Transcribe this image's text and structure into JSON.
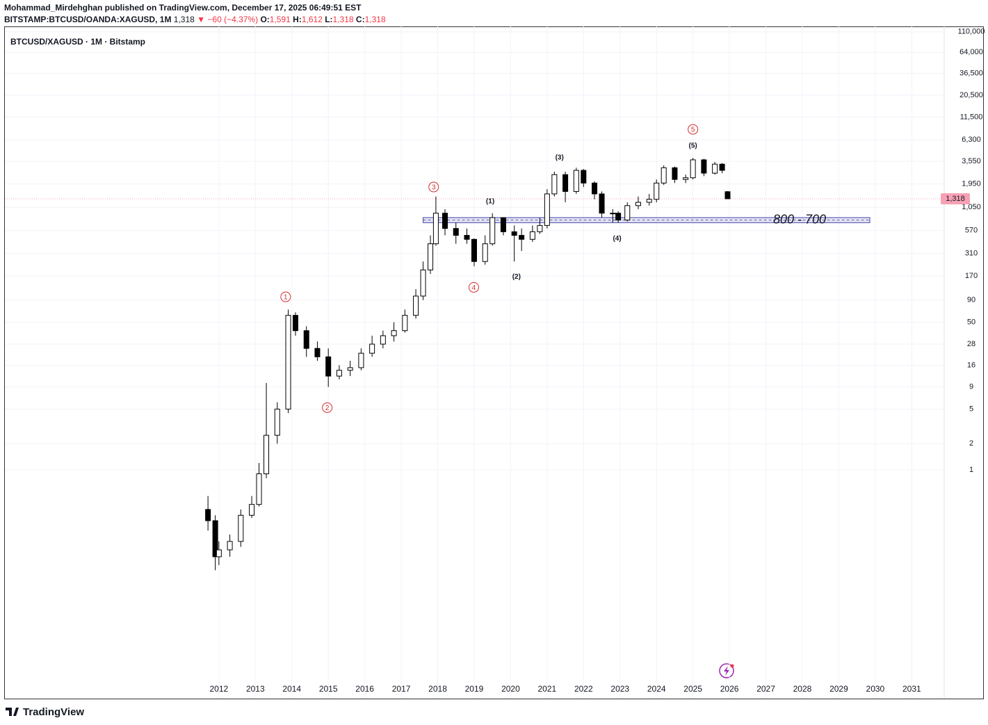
{
  "header": {
    "publisher": "Mohammad_Mirdehghan published on TradingView.com, December 17, 2025 06:49:51 EST",
    "symbol": "BITSTAMP:BTCUSD/OANDA:XAGUSD, 1M",
    "last": "1,318",
    "change": "▼ −60 (−4.37%)",
    "o_key": "O:",
    "o_val": "1,591",
    "h_key": "H:",
    "h_val": "1,612",
    "l_key": "L:",
    "l_val": "1,318",
    "c_key": "C:",
    "c_val": "1,318"
  },
  "footer": {
    "brand": "TradingView"
  },
  "chart_data": {
    "type": "candlestick",
    "title": "BTCUSD/XAGUSD · 1M · Bitstamp",
    "log_scale": true,
    "grid": true,
    "up_color": "#ffffff",
    "down_color": "#000000",
    "edge_color": "#000000",
    "x": [
      2011.7,
      2011.9,
      2012.0,
      2012.3,
      2012.6,
      2012.9,
      2013.1,
      2013.3,
      2013.6,
      2013.9,
      2014.1,
      2014.4,
      2014.7,
      2015.0,
      2015.3,
      2015.6,
      2015.9,
      2016.2,
      2016.5,
      2016.8,
      2017.1,
      2017.4,
      2017.6,
      2017.8,
      2017.95,
      2018.2,
      2018.5,
      2018.8,
      2019.0,
      2019.3,
      2019.5,
      2019.8,
      2020.1,
      2020.3,
      2020.6,
      2020.8,
      2021.0,
      2021.2,
      2021.5,
      2021.8,
      2022.0,
      2022.3,
      2022.5,
      2022.8,
      2022.95,
      2023.2,
      2023.5,
      2023.8,
      2024.0,
      2024.2,
      2024.5,
      2024.8,
      2025.0,
      2025.3,
      2025.6,
      2025.8,
      2025.95
    ],
    "open": [
      0.35,
      0.26,
      0.1,
      0.12,
      0.15,
      0.3,
      0.4,
      0.9,
      2.5,
      5,
      60,
      40,
      25,
      20,
      12,
      14,
      15,
      22,
      28,
      35,
      40,
      60,
      100,
      200,
      400,
      900,
      600,
      500,
      450,
      250,
      400,
      800,
      550,
      500,
      450,
      550,
      650,
      1500,
      2500,
      1600,
      2800,
      2000,
      1500,
      900,
      900,
      750,
      1100,
      1200,
      1300,
      2000,
      3000,
      2200,
      2300,
      3700,
      2600,
      3300,
      1591
    ],
    "high": [
      0.5,
      0.3,
      0.15,
      0.18,
      0.35,
      0.5,
      1.2,
      10,
      6,
      70,
      65,
      45,
      30,
      25,
      16,
      18,
      25,
      35,
      40,
      50,
      70,
      120,
      250,
      500,
      1400,
      1000,
      700,
      600,
      460,
      500,
      900,
      800,
      650,
      600,
      650,
      800,
      1700,
      2700,
      2700,
      3000,
      2900,
      2100,
      1600,
      1000,
      950,
      1200,
      1400,
      1500,
      2200,
      3200,
      3100,
      2500,
      3900,
      3800,
      3500,
      3400,
      1612
    ],
    "low": [
      0.2,
      0.07,
      0.08,
      0.1,
      0.13,
      0.28,
      0.38,
      0.8,
      2,
      4.5,
      35,
      20,
      18,
      9,
      11,
      12,
      14,
      20,
      25,
      30,
      38,
      55,
      90,
      180,
      380,
      500,
      400,
      400,
      220,
      230,
      380,
      500,
      250,
      330,
      420,
      520,
      600,
      1400,
      1200,
      1500,
      1800,
      1300,
      800,
      700,
      700,
      720,
      1000,
      1100,
      1200,
      1900,
      2000,
      2000,
      2200,
      2400,
      2500,
      2600,
      1318
    ],
    "close": [
      0.26,
      0.1,
      0.12,
      0.15,
      0.3,
      0.4,
      0.9,
      2.5,
      5,
      60,
      40,
      25,
      20,
      12,
      14,
      15,
      22,
      28,
      35,
      40,
      60,
      100,
      200,
      400,
      900,
      600,
      500,
      450,
      250,
      400,
      800,
      550,
      500,
      450,
      550,
      650,
      1500,
      2500,
      1600,
      2800,
      2000,
      1500,
      900,
      900,
      750,
      1100,
      1200,
      1300,
      2000,
      3000,
      2200,
      2300,
      3700,
      2600,
      3300,
      2800,
      1318
    ],
    "xlim": [
      2006.13,
      2031.89
    ],
    "xticks": [
      2012,
      2013,
      2014,
      2015,
      2016,
      2017,
      2018,
      2019,
      2020,
      2021,
      2022,
      2023,
      2024,
      2025,
      2026,
      2027,
      2028,
      2029,
      2030,
      2031
    ],
    "ylim": [
      0.00233,
      127000
    ],
    "yticks": [
      {
        "value": 110000,
        "label": "110,000"
      },
      {
        "value": 64000,
        "label": "64,000"
      },
      {
        "value": 36500,
        "label": "36,500"
      },
      {
        "value": 20500,
        "label": "20,500"
      },
      {
        "value": 11500,
        "label": "11,500"
      },
      {
        "value": 6300,
        "label": "6,300"
      },
      {
        "value": 3550,
        "label": "3,550"
      },
      {
        "value": 1950,
        "label": "1,950"
      },
      {
        "value": 1050,
        "label": "1,050"
      },
      570,
      310,
      170,
      90,
      50,
      28,
      16,
      9,
      5,
      2,
      1
    ],
    "last_price": {
      "value": 1318,
      "label": "1,318",
      "color": "#f7a1b5"
    },
    "zone": {
      "label": "800 - 700",
      "low": 700,
      "high": 800,
      "x_start": 2017.6,
      "x_end": 2029.85,
      "color": "#3f3fa8"
    },
    "annotations": [
      {
        "text": "1",
        "x": 2013.83,
        "y": 98,
        "circled": true
      },
      {
        "text": "2",
        "x": 2014.97,
        "y": 5.2,
        "circled": true
      },
      {
        "text": "3",
        "x": 2017.89,
        "y": 1800,
        "circled": true
      },
      {
        "text": "4",
        "x": 2018.99,
        "y": 126,
        "circled": true
      },
      {
        "text": "5",
        "x": 2025.0,
        "y": 8300,
        "circled": true
      },
      {
        "text": "(1)",
        "x": 2019.44,
        "y": 1230,
        "circled": false
      },
      {
        "text": "(2)",
        "x": 2020.16,
        "y": 167,
        "circled": false
      },
      {
        "text": "(3)",
        "x": 2021.34,
        "y": 3900,
        "circled": false
      },
      {
        "text": "(4)",
        "x": 2022.92,
        "y": 460,
        "circled": false
      },
      {
        "text": "(5)",
        "x": 2025.0,
        "y": 5370,
        "circled": false
      }
    ]
  }
}
